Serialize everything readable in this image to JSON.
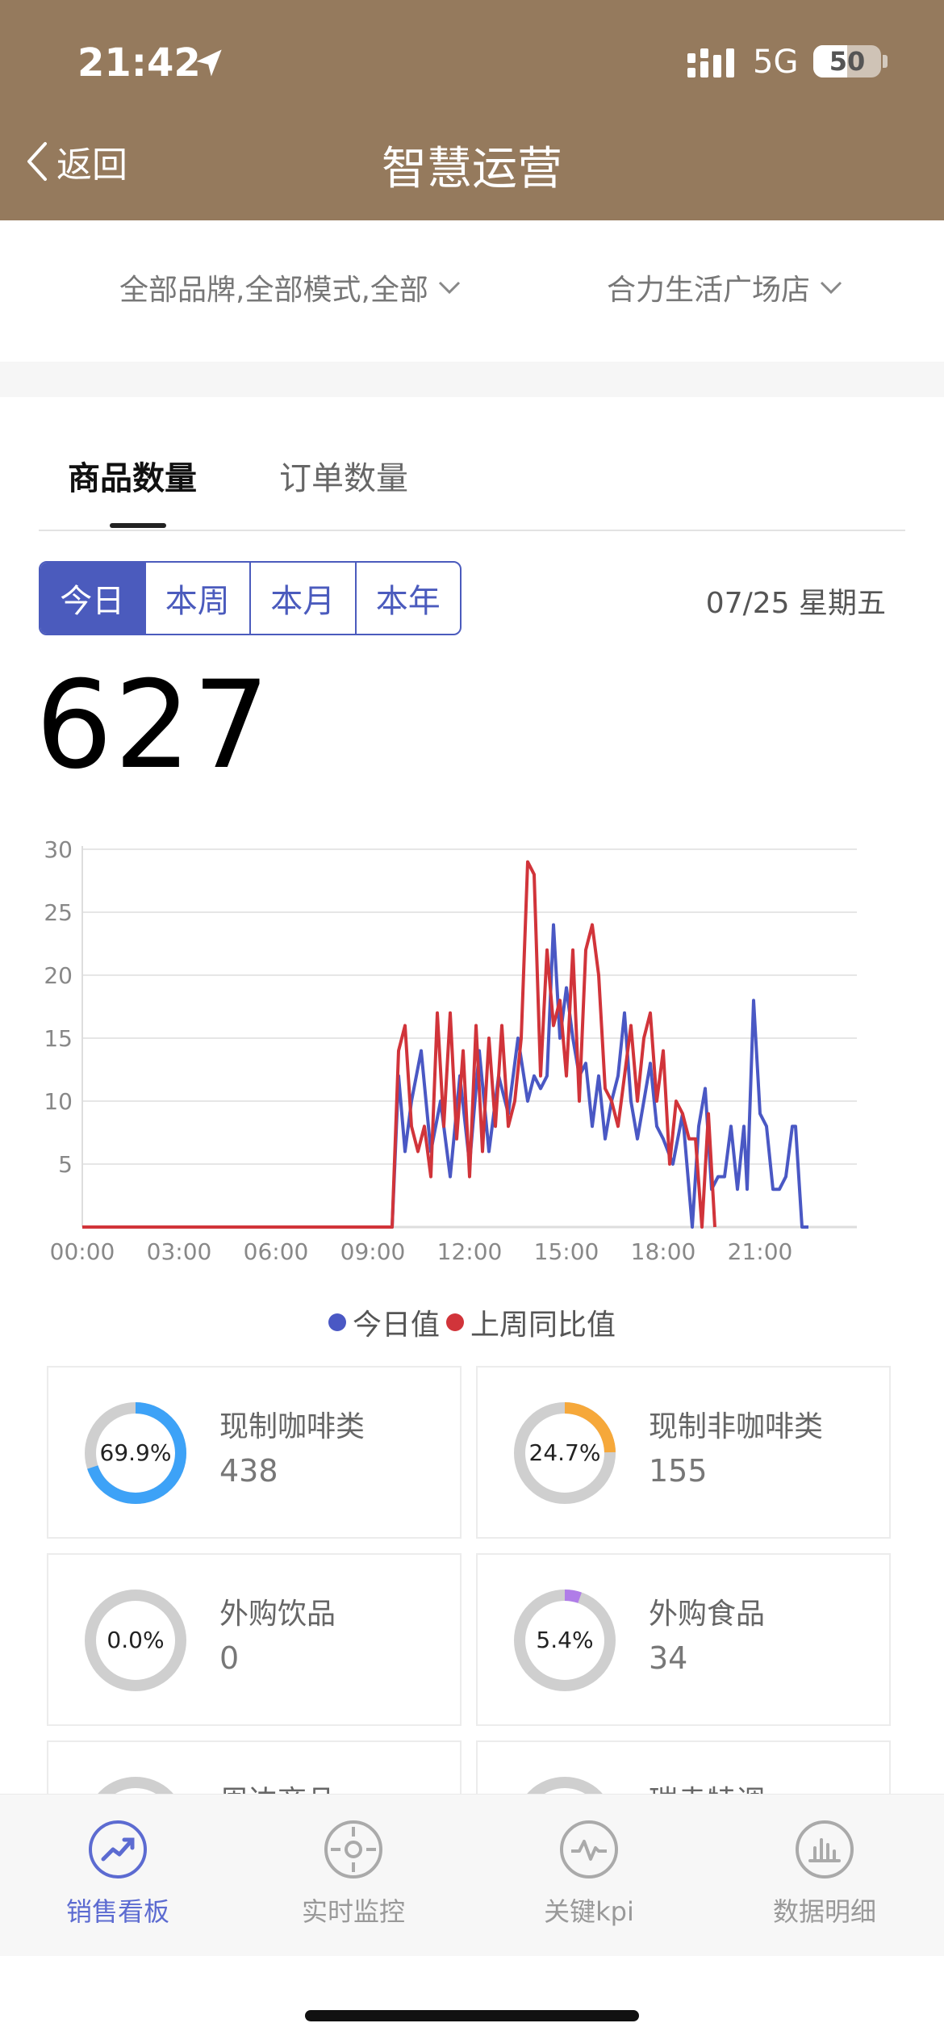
{
  "status": {
    "time": "21:42",
    "network": "5G",
    "battery": "50"
  },
  "nav": {
    "back_label": "返回",
    "title": "智慧运营"
  },
  "filters": {
    "brand_mode": "全部品牌,全部模式,全部",
    "store": "合力生活广场店"
  },
  "tabs": [
    {
      "label": "商品数量"
    },
    {
      "label": "订单数量"
    }
  ],
  "periods": [
    "今日",
    "本周",
    "本月",
    "本年"
  ],
  "date": "07/25 星期五",
  "total": "627",
  "colors": {
    "header": "#957a5d",
    "accent": "#4b5bbd",
    "today": "#4a58c4",
    "last_week": "#d1343a"
  },
  "chart_data": {
    "type": "line",
    "xlabels": [
      "00:00",
      "03:00",
      "06:00",
      "09:00",
      "12:00",
      "15:00",
      "18:00",
      "21:00"
    ],
    "ylabels": [
      "30",
      "25",
      "20",
      "15",
      "10",
      "5"
    ],
    "ylim": [
      0,
      30
    ],
    "grid": true,
    "legend_position": "bottom",
    "series": [
      {
        "name": "今日值",
        "color": "#4a58c4",
        "points": [
          [
            0,
            0
          ],
          [
            9.6,
            0
          ],
          [
            9.8,
            12
          ],
          [
            10.0,
            6
          ],
          [
            10.2,
            10
          ],
          [
            10.5,
            14
          ],
          [
            10.8,
            6
          ],
          [
            11.1,
            10
          ],
          [
            11.4,
            4
          ],
          [
            11.7,
            12
          ],
          [
            12.0,
            5
          ],
          [
            12.3,
            14
          ],
          [
            12.6,
            6
          ],
          [
            12.9,
            12
          ],
          [
            13.2,
            9
          ],
          [
            13.5,
            15
          ],
          [
            13.8,
            10
          ],
          [
            14.0,
            12
          ],
          [
            14.2,
            11
          ],
          [
            14.4,
            12
          ],
          [
            14.6,
            24
          ],
          [
            14.8,
            15
          ],
          [
            15.0,
            19
          ],
          [
            15.2,
            15
          ],
          [
            15.4,
            12
          ],
          [
            15.6,
            13
          ],
          [
            15.8,
            8
          ],
          [
            16.0,
            12
          ],
          [
            16.2,
            7
          ],
          [
            16.4,
            10
          ],
          [
            16.6,
            12
          ],
          [
            16.8,
            17
          ],
          [
            17.0,
            10
          ],
          [
            17.2,
            7
          ],
          [
            17.4,
            10
          ],
          [
            17.6,
            13
          ],
          [
            17.8,
            8
          ],
          [
            18.0,
            7
          ],
          [
            18.3,
            5
          ],
          [
            18.6,
            9
          ],
          [
            18.9,
            0
          ],
          [
            19.1,
            8
          ],
          [
            19.3,
            11
          ],
          [
            19.5,
            3
          ],
          [
            19.7,
            4
          ],
          [
            19.9,
            4
          ],
          [
            20.1,
            8
          ],
          [
            20.3,
            3
          ],
          [
            20.5,
            8
          ],
          [
            20.6,
            3
          ],
          [
            20.8,
            18
          ],
          [
            21.0,
            9
          ],
          [
            21.2,
            8
          ],
          [
            21.4,
            3
          ],
          [
            21.6,
            3
          ],
          [
            21.8,
            4
          ],
          [
            22.0,
            8
          ],
          [
            22.1,
            8
          ],
          [
            22.3,
            0
          ],
          [
            22.5,
            0
          ]
        ]
      },
      {
        "name": "上周同比值",
        "color": "#d1343a",
        "points": [
          [
            0,
            0
          ],
          [
            9.6,
            0
          ],
          [
            9.8,
            14
          ],
          [
            10.0,
            16
          ],
          [
            10.2,
            8
          ],
          [
            10.4,
            6
          ],
          [
            10.6,
            8
          ],
          [
            10.8,
            4
          ],
          [
            11.0,
            17
          ],
          [
            11.2,
            8
          ],
          [
            11.4,
            17
          ],
          [
            11.6,
            7
          ],
          [
            11.8,
            14
          ],
          [
            12.0,
            4
          ],
          [
            12.2,
            16
          ],
          [
            12.4,
            6
          ],
          [
            12.6,
            15
          ],
          [
            12.8,
            8
          ],
          [
            13.0,
            16
          ],
          [
            13.2,
            8
          ],
          [
            13.4,
            10
          ],
          [
            13.6,
            15
          ],
          [
            13.8,
            29
          ],
          [
            14.0,
            28
          ],
          [
            14.2,
            12
          ],
          [
            14.4,
            22
          ],
          [
            14.6,
            16
          ],
          [
            14.8,
            18
          ],
          [
            15.0,
            12
          ],
          [
            15.2,
            22
          ],
          [
            15.4,
            10
          ],
          [
            15.6,
            22
          ],
          [
            15.8,
            24
          ],
          [
            16.0,
            20
          ],
          [
            16.2,
            11
          ],
          [
            16.4,
            10
          ],
          [
            16.6,
            8
          ],
          [
            16.8,
            12
          ],
          [
            17.0,
            16
          ],
          [
            17.2,
            10
          ],
          [
            17.4,
            15
          ],
          [
            17.6,
            17
          ],
          [
            17.8,
            10
          ],
          [
            18.0,
            14
          ],
          [
            18.2,
            5
          ],
          [
            18.4,
            10
          ],
          [
            18.6,
            9
          ],
          [
            18.8,
            7
          ],
          [
            19.0,
            7
          ],
          [
            19.2,
            0
          ],
          [
            19.4,
            9
          ],
          [
            19.6,
            0
          ]
        ]
      }
    ]
  },
  "categories": [
    {
      "name": "现制咖啡类",
      "percent": "69.9%",
      "value": "438",
      "ratio": 0.699,
      "color": "#3da2f7"
    },
    {
      "name": "现制非咖啡类",
      "percent": "24.7%",
      "value": "155",
      "ratio": 0.247,
      "color": "#f6a83a"
    },
    {
      "name": "外购饮品",
      "percent": "0.0%",
      "value": "0",
      "ratio": 0.0,
      "color": "#cccccc"
    },
    {
      "name": "外购食品",
      "percent": "5.4%",
      "value": "34",
      "ratio": 0.054,
      "color": "#b07de8"
    },
    {
      "name": "周边商品",
      "value": ""
    },
    {
      "name": "瑞幸特调",
      "value": ""
    }
  ],
  "bottom_nav": [
    {
      "label": "销售看板",
      "icon": "trend-icon"
    },
    {
      "label": "实时监控",
      "icon": "target-icon"
    },
    {
      "label": "关键kpi",
      "icon": "pulse-icon"
    },
    {
      "label": "数据明细",
      "icon": "bar-chart-icon"
    }
  ]
}
